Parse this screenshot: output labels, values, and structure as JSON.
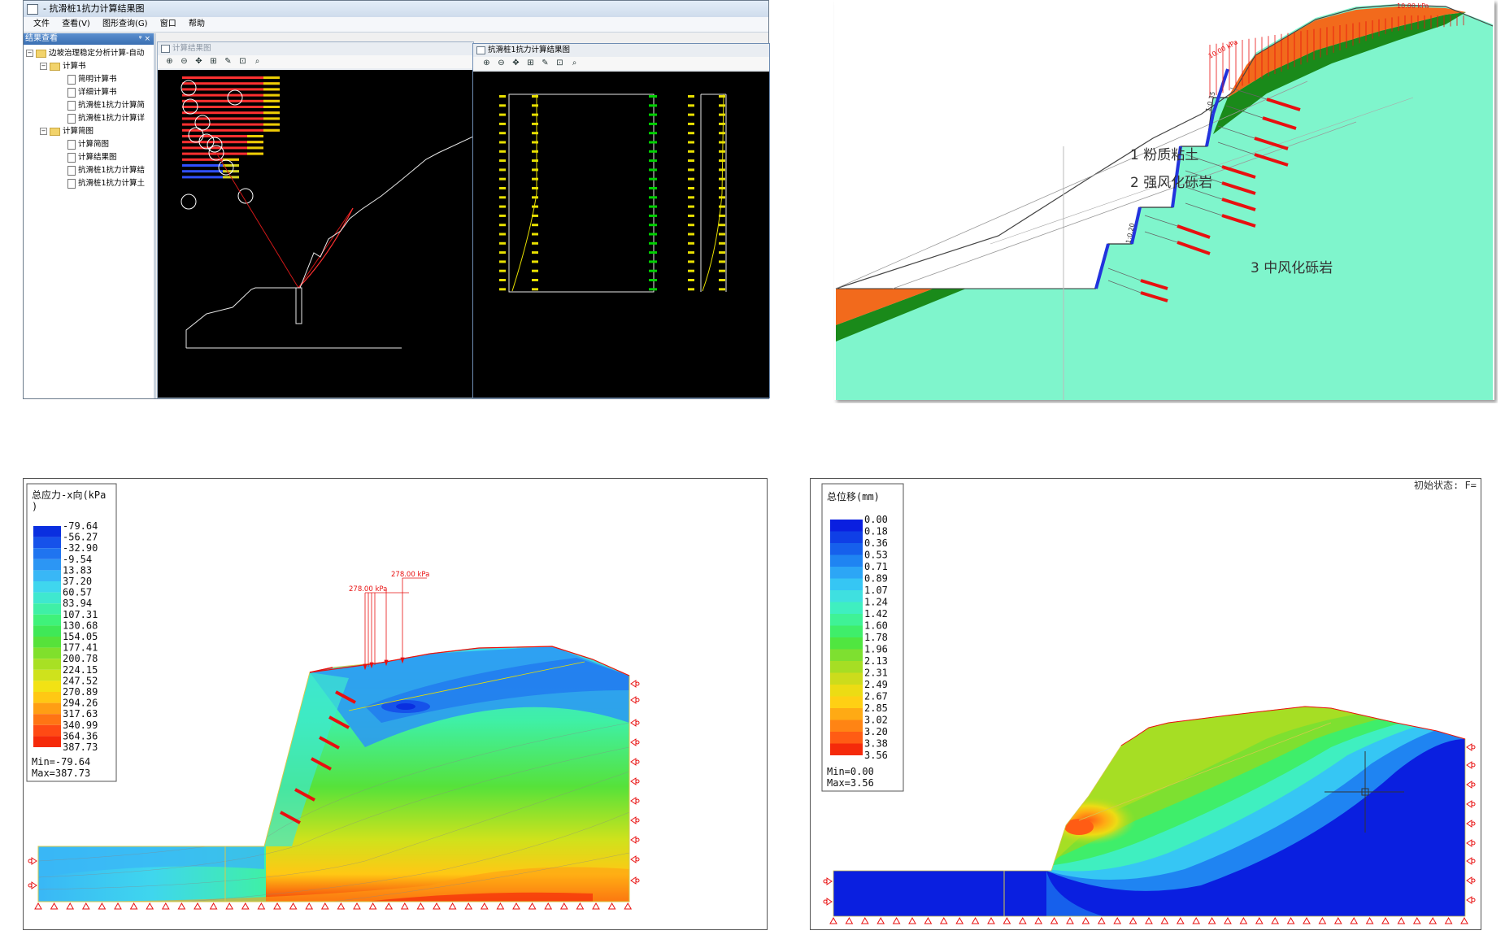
{
  "app": {
    "title": "- 抗滑桩1抗力计算结果图",
    "menu": [
      "文件",
      "查看(V)",
      "图形查询(G)",
      "窗口",
      "帮助"
    ],
    "tree_panel_title": "结果查看",
    "tree_panel_controls": "ᵠ ×",
    "tree": {
      "root": "边坡治理稳定分析计算-自动",
      "group1": "计算书",
      "group1_items": [
        "简明计算书",
        "详细计算书",
        "抗滑桩1抗力计算简",
        "抗滑桩1抗力计算详"
      ],
      "group2": "计算简图",
      "group2_items": [
        "计算简图",
        "计算结果图",
        "抗滑桩1抗力计算结",
        "抗滑桩1抗力计算土"
      ]
    },
    "window1_title": "计算结果图",
    "window2_title": "抗滑桩1抗力计算结果图",
    "toolbar_icons": [
      "zoom-in-icon",
      "zoom-out-icon",
      "pan-icon",
      "zoom-window-icon",
      "edit-icon",
      "zoom-extents-icon",
      "zoom-realtime-icon"
    ],
    "toolbar_glyphs": [
      "⊕",
      "⊖",
      "✥",
      "⊞",
      "✎",
      "⊡",
      "⌕"
    ],
    "colors": {
      "slip_red": "#ff2020",
      "slope_white": "#ffffff",
      "moment_yellow": "#e8e000",
      "shear_green": "#00d000"
    }
  },
  "section": {
    "layer1": "1 粉质粘土",
    "layer2": "2 强风化砾岩",
    "layer3": "3 中风化砾岩",
    "slope_ratio_upper": "1:0.35",
    "slope_ratio_lower": "1:0.20",
    "load_label": "10.00 kPa",
    "colors": {
      "layer_orange": "#f26a1c",
      "layer_green": "#1a8a1a",
      "ground_mint": "#7ff5cc",
      "anchor_red": "#e81010",
      "face_blue": "#2233dd"
    }
  },
  "stress": {
    "title": "总应力-x向(kPa)",
    "legend_values": [
      "-79.64",
      "-56.27",
      "-32.90",
      "-9.54",
      "13.83",
      "37.20",
      "60.57",
      "83.94",
      "107.31",
      "130.68",
      "154.05",
      "177.41",
      "200.78",
      "224.15",
      "247.52",
      "270.89",
      "294.26",
      "317.63",
      "340.99",
      "364.36",
      "387.73"
    ],
    "legend_colors": [
      "#0a2fe0",
      "#1652ea",
      "#1f74f0",
      "#2c96f4",
      "#39b7f6",
      "#3fd6ee",
      "#3fe8cf",
      "#3ff0a6",
      "#3ff27a",
      "#3fe857",
      "#56e23a",
      "#80e02c",
      "#a8e024",
      "#cfe21c",
      "#f2e214",
      "#ffc814",
      "#ff9e14",
      "#ff7414",
      "#ff4a14",
      "#f52a0a"
    ],
    "min": "Min=-79.64",
    "max": "Max=387.73",
    "load1": "278.00 kPa",
    "load2": "278.00 kPa"
  },
  "displacement": {
    "title": "总位移(mm)",
    "legend_values": [
      "0.00",
      "0.18",
      "0.36",
      "0.53",
      "0.71",
      "0.89",
      "1.07",
      "1.24",
      "1.42",
      "1.60",
      "1.78",
      "1.96",
      "2.13",
      "2.31",
      "2.49",
      "2.67",
      "2.85",
      "3.02",
      "3.20",
      "3.38",
      "3.56"
    ],
    "legend_colors": [
      "#0a1fe0",
      "#0f3fe6",
      "#1660ec",
      "#1f84f2",
      "#2ca6f6",
      "#36c6f4",
      "#3fe0e0",
      "#3fefc0",
      "#3ff296",
      "#3fee6a",
      "#50e640",
      "#7ee030",
      "#a6de24",
      "#ccdc1c",
      "#ecdc14",
      "#ffd014",
      "#ffaa14",
      "#ff8414",
      "#ff5c14",
      "#f52a0a"
    ],
    "min": "Min=0.00",
    "max": "Max=3.56",
    "status": "初始状态: F="
  }
}
